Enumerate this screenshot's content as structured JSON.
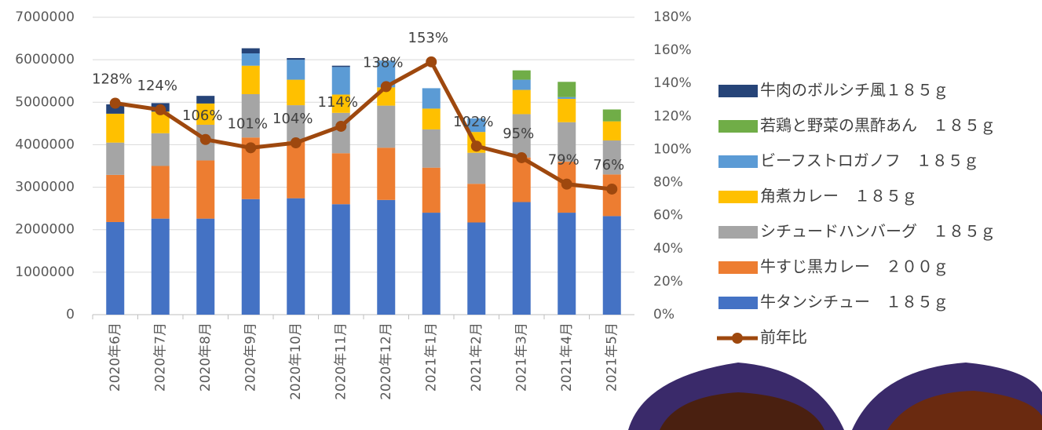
{
  "chart_data": {
    "type": "bar",
    "categories": [
      "2020年6月",
      "2020年7月",
      "2020年8月",
      "2020年9月",
      "2020年10月",
      "2020年11月",
      "2020年12月",
      "2021年1月",
      "2021年2月",
      "2021年3月",
      "2021年4月",
      "2021年5月"
    ],
    "stacked": true,
    "series": [
      {
        "name": "牛タンシチュー　１８５ｇ",
        "color": "#4472c4",
        "values": [
          2180000,
          2260000,
          2260000,
          2720000,
          2740000,
          2600000,
          2700000,
          2400000,
          2170000,
          2650000,
          2400000,
          2320000
        ]
      },
      {
        "name": "牛すじ黒カレー　２００ｇ",
        "color": "#ed7d31",
        "values": [
          1110000,
          1240000,
          1370000,
          1450000,
          1340000,
          1200000,
          1230000,
          1060000,
          910000,
          1050000,
          1200000,
          980000
        ]
      },
      {
        "name": "シチュードハンバーグ　１８５ｇ",
        "color": "#a5a5a5",
        "values": [
          760000,
          770000,
          840000,
          1020000,
          850000,
          950000,
          990000,
          900000,
          730000,
          1020000,
          930000,
          800000
        ]
      },
      {
        "name": "角煮カレー　１８５ｇ",
        "color": "#ffc000",
        "values": [
          680000,
          510000,
          500000,
          670000,
          600000,
          430000,
          430000,
          490000,
          490000,
          570000,
          550000,
          450000
        ]
      },
      {
        "name": "ビーフストロガノフ　１８５ｇ",
        "color": "#5b9bd5",
        "values": [
          null,
          null,
          null,
          290000,
          470000,
          650000,
          630000,
          480000,
          320000,
          240000,
          40000,
          null
        ]
      },
      {
        "name": "若鶏と野菜の黒酢あん　１８５ｇ",
        "color": "#70ad47",
        "values": [
          null,
          null,
          null,
          null,
          null,
          null,
          null,
          null,
          null,
          220000,
          360000,
          280000
        ]
      },
      {
        "name": "牛肉のボルシチ風１８５ｇ",
        "color": "#264478",
        "values": [
          220000,
          200000,
          180000,
          120000,
          40000,
          30000,
          null,
          null,
          null,
          null,
          null,
          null
        ]
      },
      {
        "name": "前年比",
        "type": "line",
        "axis": "y2",
        "color": "#9e480e",
        "values": [
          128,
          124,
          106,
          101,
          104,
          114,
          138,
          153,
          102,
          95,
          79,
          76
        ],
        "value_labels": [
          "128%",
          "124%",
          "106%",
          "101%",
          "104%",
          "114%",
          "138%",
          "153%",
          "102%",
          "95%",
          "79%",
          "76%"
        ]
      }
    ],
    "ylim": [
      0,
      7000000
    ],
    "yticks": [
      0,
      1000000,
      2000000,
      3000000,
      4000000,
      5000000,
      6000000,
      7000000
    ],
    "y2lim": [
      0,
      180
    ],
    "y2ticks": [
      {
        "value": 0,
        "label": "0%"
      },
      {
        "value": 20,
        "label": "20%"
      },
      {
        "value": 40,
        "label": "40%"
      },
      {
        "value": 60,
        "label": "60%"
      },
      {
        "value": 80,
        "label": "80%"
      },
      {
        "value": 100,
        "label": "100%"
      },
      {
        "value": 120,
        "label": "120%"
      },
      {
        "value": 140,
        "label": "140%"
      },
      {
        "value": 160,
        "label": "160%"
      },
      {
        "value": 180,
        "label": "180%"
      }
    ],
    "grid": true,
    "legend": "right"
  }
}
